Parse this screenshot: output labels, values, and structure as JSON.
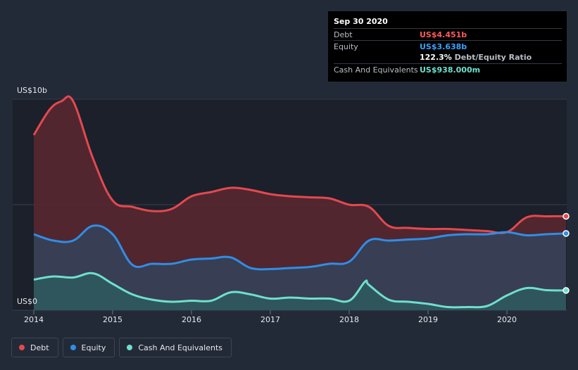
{
  "tooltip": {
    "date": "Sep 30 2020",
    "debt_label": "Debt",
    "debt_value": "US$4.451b",
    "equity_label": "Equity",
    "equity_value": "US$3.638b",
    "ratio_value": "122.3%",
    "ratio_label": "Debt/Equity Ratio",
    "cash_label": "Cash And Equivalents",
    "cash_value": "US$938.000m"
  },
  "legend": [
    {
      "label": "Debt",
      "color": "#e5484f"
    },
    {
      "label": "Equity",
      "color": "#2f8ee6"
    },
    {
      "label": "Cash And Equivalents",
      "color": "#6ee0cd"
    }
  ],
  "chart_data": {
    "type": "area",
    "y_top_label": "US$10b",
    "y_bottom_label": "US$0",
    "ylim": [
      0,
      10
    ],
    "xlim": [
      2014,
      2020.75
    ],
    "x_ticks": [
      2014,
      2015,
      2016,
      2017,
      2018,
      2019,
      2020
    ],
    "x_tick_labels": [
      "2014",
      "2015",
      "2016",
      "2017",
      "2018",
      "2019",
      "2020"
    ],
    "series": [
      {
        "name": "Debt",
        "color": "#e5484f",
        "fill": "#5a2830",
        "x": [
          2014,
          2014.2,
          2014.35,
          2014.5,
          2014.75,
          2015,
          2015.25,
          2015.5,
          2015.75,
          2016,
          2016.25,
          2016.5,
          2016.75,
          2017,
          2017.25,
          2017.5,
          2017.75,
          2018,
          2018.25,
          2018.5,
          2018.75,
          2019,
          2019.25,
          2019.5,
          2019.75,
          2020,
          2020.25,
          2020.5,
          2020.75
        ],
        "values": [
          8.3,
          9.5,
          9.9,
          9.9,
          7.2,
          5.2,
          4.9,
          4.7,
          4.8,
          5.4,
          5.6,
          5.8,
          5.7,
          5.5,
          5.4,
          5.35,
          5.3,
          5.0,
          4.9,
          4.0,
          3.9,
          3.85,
          3.85,
          3.8,
          3.75,
          3.7,
          4.4,
          4.45,
          4.451
        ]
      },
      {
        "name": "Equity",
        "color": "#2f8ee6",
        "fill": "#34435b",
        "x": [
          2014,
          2014.25,
          2014.5,
          2014.75,
          2015,
          2015.25,
          2015.5,
          2015.75,
          2016,
          2016.25,
          2016.5,
          2016.75,
          2017,
          2017.25,
          2017.5,
          2017.75,
          2018,
          2018.25,
          2018.5,
          2018.75,
          2019,
          2019.25,
          2019.5,
          2019.75,
          2020,
          2020.25,
          2020.5,
          2020.75
        ],
        "values": [
          3.6,
          3.3,
          3.3,
          4.0,
          3.6,
          2.15,
          2.2,
          2.2,
          2.4,
          2.45,
          2.5,
          2.0,
          1.95,
          2.0,
          2.05,
          2.2,
          2.3,
          3.3,
          3.3,
          3.35,
          3.4,
          3.55,
          3.6,
          3.6,
          3.7,
          3.55,
          3.6,
          3.638
        ]
      },
      {
        "name": "Cash And Equivalents",
        "color": "#6ee0cd",
        "fill": "#2e5a5e",
        "x": [
          2014,
          2014.25,
          2014.5,
          2014.75,
          2015,
          2015.25,
          2015.5,
          2015.75,
          2016,
          2016.25,
          2016.5,
          2016.75,
          2017,
          2017.25,
          2017.5,
          2017.75,
          2018,
          2018.2,
          2018.25,
          2018.5,
          2018.75,
          2019,
          2019.25,
          2019.5,
          2019.75,
          2020,
          2020.25,
          2020.5,
          2020.75
        ],
        "values": [
          1.45,
          1.6,
          1.55,
          1.75,
          1.25,
          0.75,
          0.5,
          0.4,
          0.45,
          0.45,
          0.85,
          0.75,
          0.55,
          0.6,
          0.55,
          0.55,
          0.45,
          1.35,
          1.2,
          0.5,
          0.4,
          0.3,
          0.15,
          0.15,
          0.2,
          0.7,
          1.05,
          0.95,
          0.938
        ]
      }
    ]
  }
}
